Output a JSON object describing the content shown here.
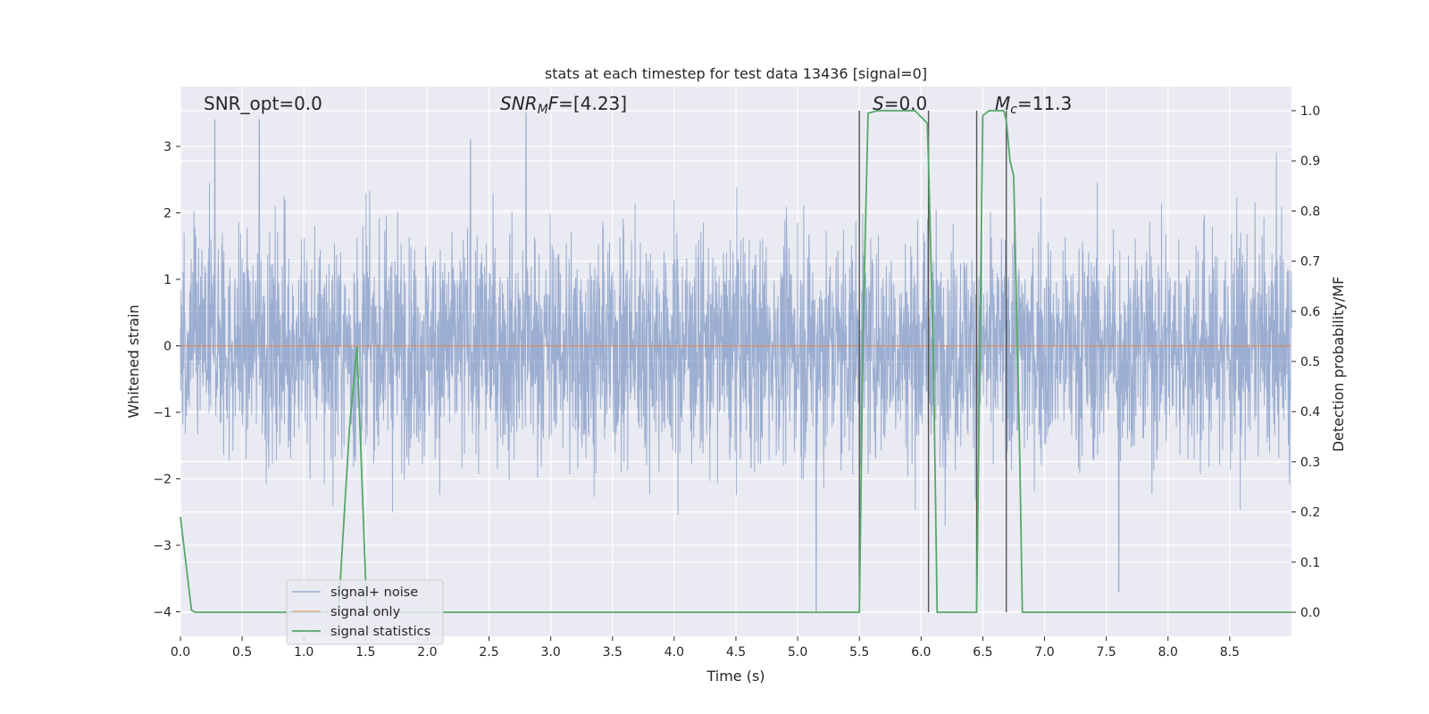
{
  "chart_data": {
    "type": "line",
    "title": "stats at each timestep for test data 13436 [signal=0]",
    "xlabel": "Time (s)",
    "ylabel": "Whitened strain",
    "y2label": "Detection probability/MF",
    "xlim": [
      0.0,
      9.0
    ],
    "ylim": [
      -4.37,
      3.9
    ],
    "y2lim": [
      -0.048,
      1.048
    ],
    "xticks": [
      "0.0",
      "0.5",
      "1.0",
      "1.5",
      "2.0",
      "2.5",
      "3.0",
      "3.5",
      "4.0",
      "4.5",
      "5.0",
      "5.5",
      "6.0",
      "6.5",
      "7.0",
      "7.5",
      "8.0",
      "8.5"
    ],
    "yticks": [
      "3",
      "2",
      "1",
      "0",
      "−1",
      "−2",
      "−3",
      "−4"
    ],
    "y2ticks": [
      "1.0",
      "0.9",
      "0.8",
      "0.7",
      "0.6",
      "0.5",
      "0.4",
      "0.3",
      "0.2",
      "0.1",
      "0.0"
    ],
    "grid": true,
    "legend_position": "lower-left",
    "annotations": {
      "snr_opt": "SNR_opt=0.0",
      "snr_mf_var": "SNR",
      "snr_mf_sub": "M",
      "snr_mf_var2": "F",
      "snr_mf_val": "=[4.23]",
      "s_var": "S",
      "s_val": "=0.0",
      "mc_var": "M",
      "mc_sub": "c",
      "mc_val": "=11.3"
    },
    "series": [
      {
        "name": "signal+ noise",
        "color": "#4c72b0",
        "description": "whitened strain noise, approx Gaussian with sigma ~1, sampled densely",
        "noise_sigma": 1.0,
        "x_range": [
          0.0,
          9.0
        ],
        "notable_extremes": [
          {
            "x": 0.28,
            "y": 3.4
          },
          {
            "x": 0.64,
            "y": 3.4
          },
          {
            "x": 2.35,
            "y": 3.1
          },
          {
            "x": 2.8,
            "y": 3.5
          },
          {
            "x": 5.15,
            "y": -4.0
          },
          {
            "x": 7.6,
            "y": -3.7
          }
        ]
      },
      {
        "name": "signal only",
        "color": "#dd8452",
        "x": [
          0.0,
          9.0
        ],
        "y": [
          0.0,
          0.0
        ]
      },
      {
        "name": "signal statistics",
        "color": "#55a868",
        "axis": "right",
        "x": [
          0.0,
          0.09,
          0.12,
          0.2,
          1.28,
          1.37,
          1.43,
          1.51,
          1.6,
          5.5,
          5.53,
          5.57,
          5.65,
          5.95,
          6.05,
          6.06,
          6.1,
          6.13,
          6.2,
          6.45,
          6.5,
          6.55,
          6.6,
          6.67,
          6.69,
          6.72,
          6.75,
          6.8,
          6.82,
          9.0
        ],
        "y": [
          0.19,
          0.004,
          0.0,
          0.0,
          0.0,
          0.37,
          0.53,
          0.0,
          0.0,
          0.0,
          0.56,
          0.995,
          1.0,
          1.0,
          0.975,
          0.9,
          0.5,
          0.0,
          0.0,
          0.0,
          0.99,
          1.0,
          1.0,
          1.0,
          0.98,
          0.9,
          0.87,
          0.3,
          0.0,
          0.0
        ]
      }
    ],
    "vertical_markers": {
      "color": "#555555",
      "x": [
        5.5,
        6.06,
        6.45,
        6.69
      ],
      "y2_range": [
        0.0,
        1.0
      ]
    }
  }
}
